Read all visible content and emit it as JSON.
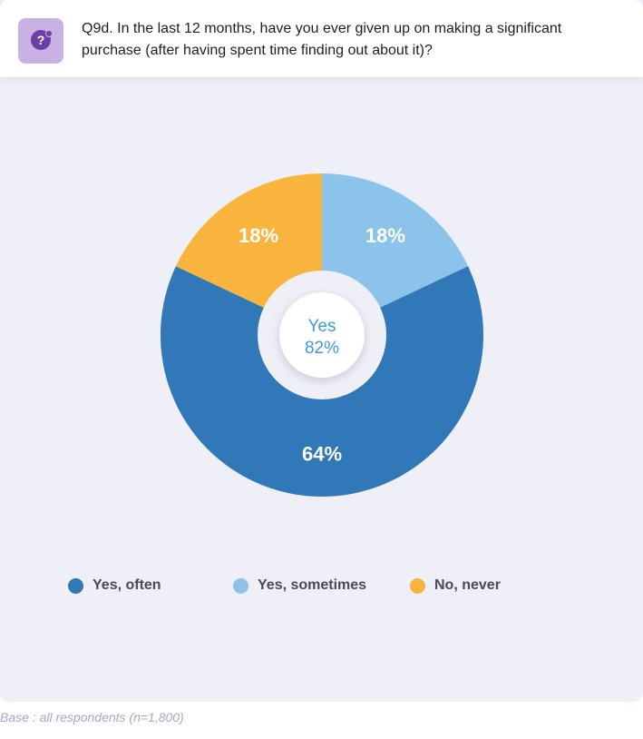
{
  "header": {
    "icon": "question-mark-icon",
    "question": "Q9d. In the last 12 months, have you ever given up on making a significant purchase (after having spent time finding out about it)?"
  },
  "chart_data": {
    "type": "pie",
    "variant": "donut",
    "slices": [
      {
        "label": "Yes, sometimes",
        "value": 18,
        "display": "18%",
        "color": "#8cc3ea"
      },
      {
        "label": "Yes, often",
        "value": 64,
        "display": "64%",
        "color": "#3178b8"
      },
      {
        "label": "No, never",
        "value": 18,
        "display": "18%",
        "color": "#f9b43e"
      }
    ],
    "center": {
      "label": "Yes",
      "value": "82%",
      "color": "#3b9ed8"
    },
    "legend_placement": "bottom"
  },
  "legend": [
    {
      "label": "Yes, often",
      "color": "#3178b8"
    },
    {
      "label": "Yes, sometimes",
      "color": "#8cc3ea"
    },
    {
      "label": "No, never",
      "color": "#f9b43e"
    }
  ],
  "footnote": "Base : all respondents (n=1,800)"
}
